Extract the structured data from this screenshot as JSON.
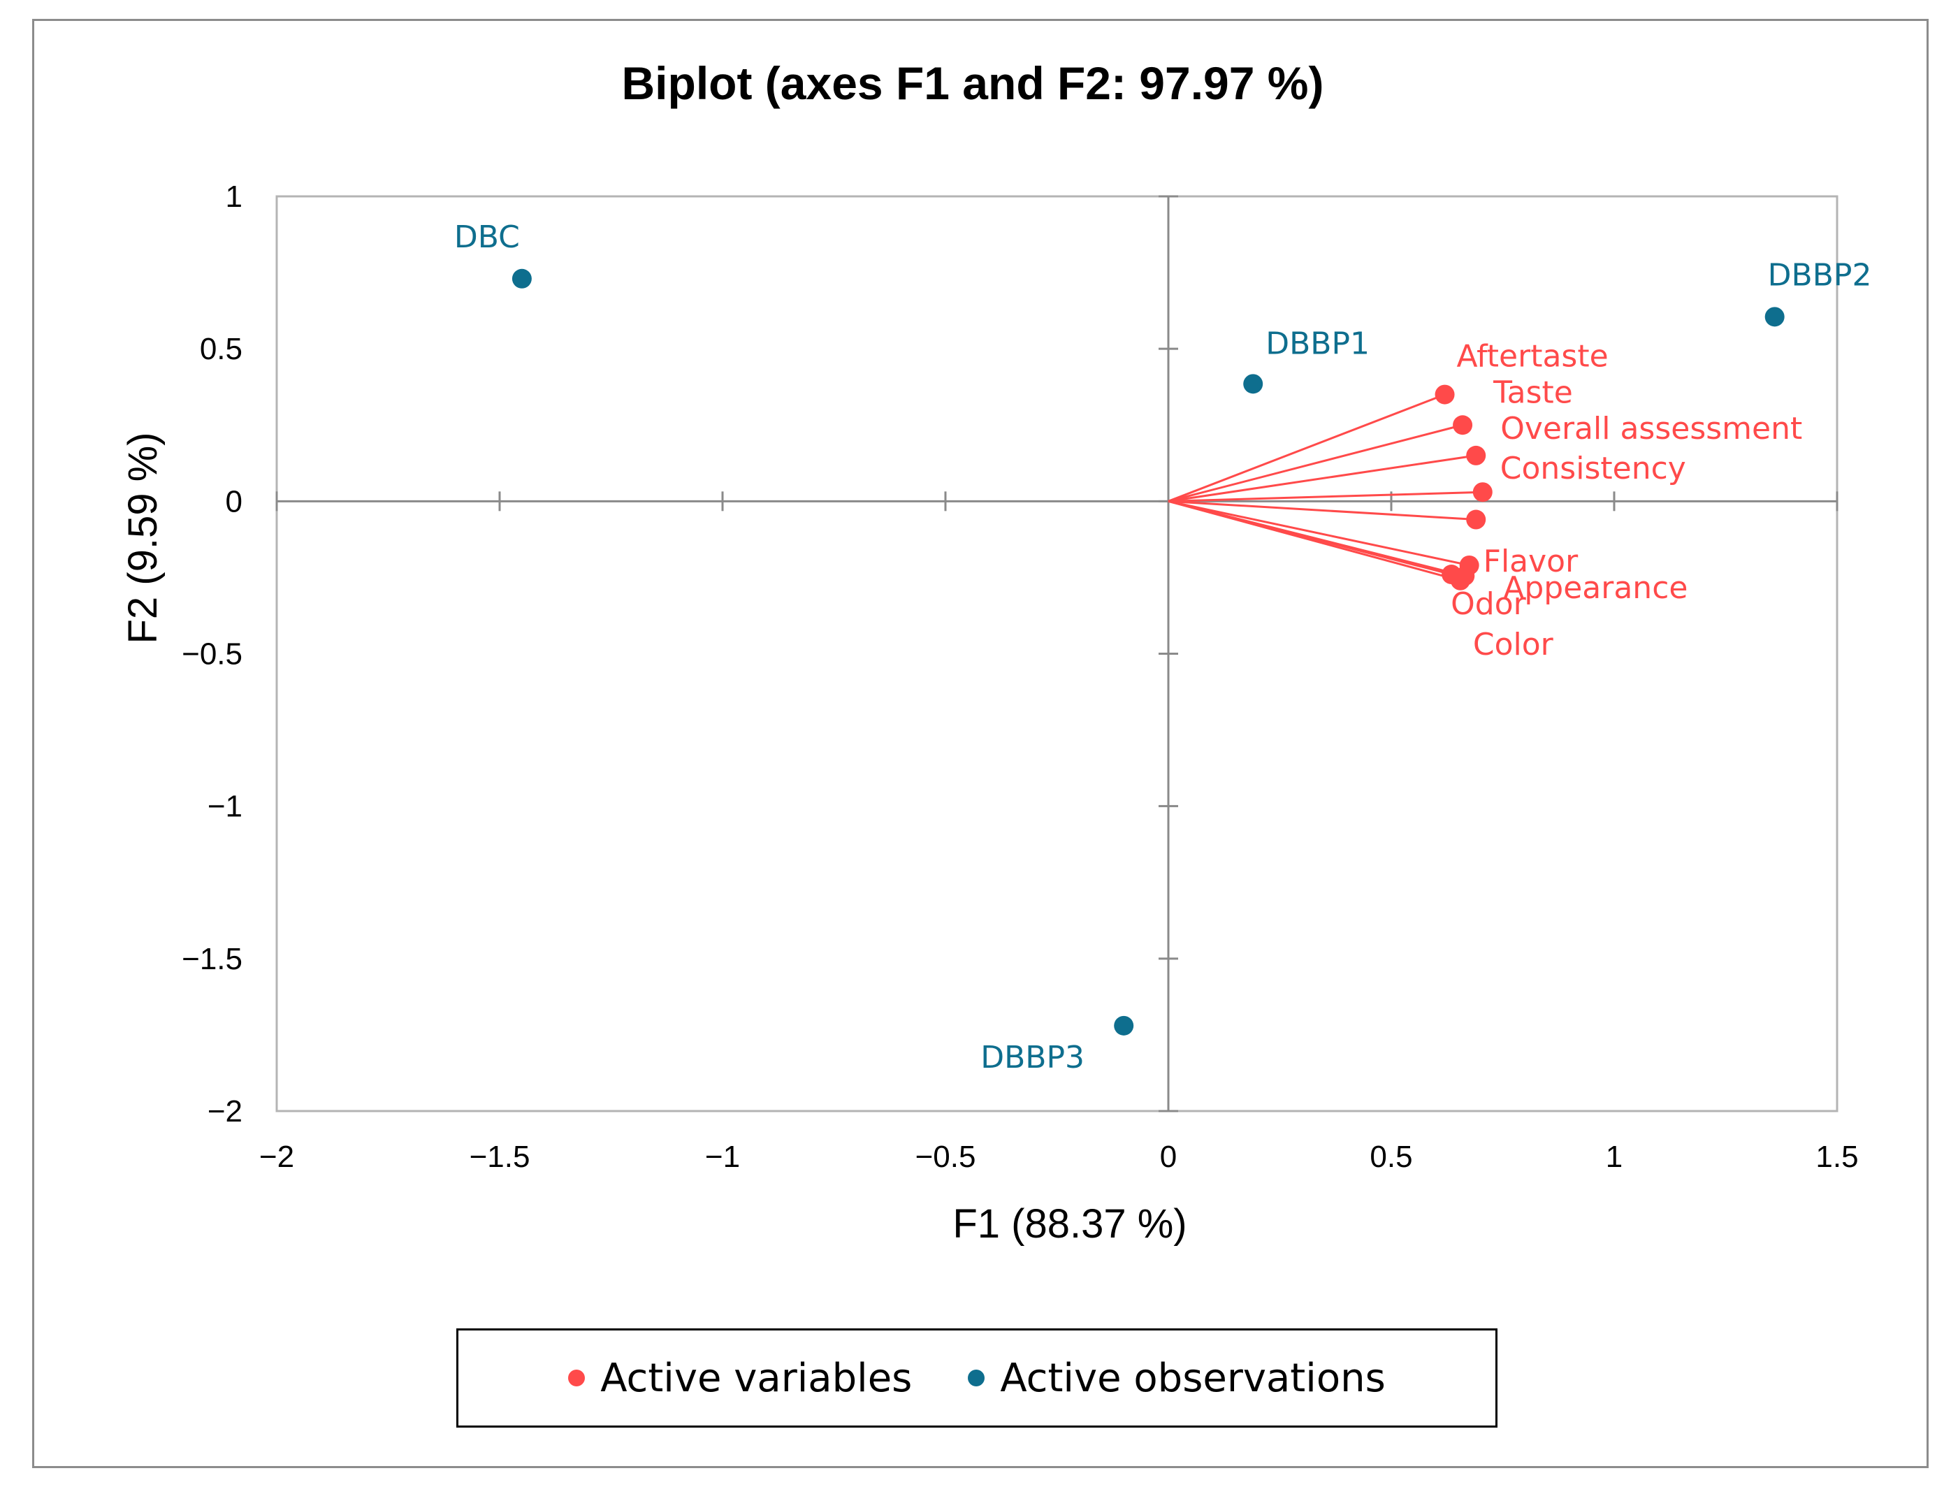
{
  "chart_data": {
    "type": "scatter",
    "title": "Biplot (axes F1 and F2: 97.97 %)",
    "xlabel": "F1 (88.37 %)",
    "ylabel": "F2 (9.59 %)",
    "xlim": [
      -2,
      1.5
    ],
    "ylim": [
      -2,
      1
    ],
    "x_ticks": [
      -2,
      -1.5,
      -1,
      -0.5,
      0,
      0.5,
      1,
      1.5
    ],
    "x_tick_labels": [
      "−2",
      "−1.5",
      "−1",
      "−0.5",
      "0",
      "0.5",
      "1",
      "1.5"
    ],
    "y_ticks": [
      1,
      0.5,
      0,
      -0.5,
      -1,
      -1.5,
      -2
    ],
    "y_tick_labels": [
      "1",
      "0.5",
      "0",
      "−0.5",
      "−1",
      "−1.5",
      "−2"
    ],
    "series": [
      {
        "name": "Active variables",
        "color": "#ff4a4a",
        "kind": "vectors",
        "points": [
          {
            "label": "Aftertaste",
            "x": 0.62,
            "y": 0.35
          },
          {
            "label": "Taste",
            "x": 0.66,
            "y": 0.25
          },
          {
            "label": "Overall assessment",
            "x": 0.69,
            "y": 0.15
          },
          {
            "label": "Consistency",
            "x": 0.705,
            "y": 0.03
          },
          {
            "label": "",
            "x": 0.69,
            "y": -0.06
          },
          {
            "label": "Flavor",
            "x": 0.675,
            "y": -0.21
          },
          {
            "label": "Appearance",
            "x": 0.665,
            "y": -0.245
          },
          {
            "label": "Odor",
            "x": 0.635,
            "y": -0.24
          },
          {
            "label": "Color",
            "x": 0.655,
            "y": -0.26
          }
        ]
      },
      {
        "name": "Active observations",
        "color": "#0e6e8e",
        "kind": "points",
        "points": [
          {
            "label": "DBC",
            "x": -1.45,
            "y": 0.73
          },
          {
            "label": "DBBP1",
            "x": 0.19,
            "y": 0.385
          },
          {
            "label": "DBBP2",
            "x": 1.36,
            "y": 0.605
          },
          {
            "label": "DBBP3",
            "x": -0.1,
            "y": -1.72
          }
        ]
      }
    ],
    "legend": {
      "position": "bottom",
      "entries": [
        "Active variables",
        "Active observations"
      ]
    }
  }
}
